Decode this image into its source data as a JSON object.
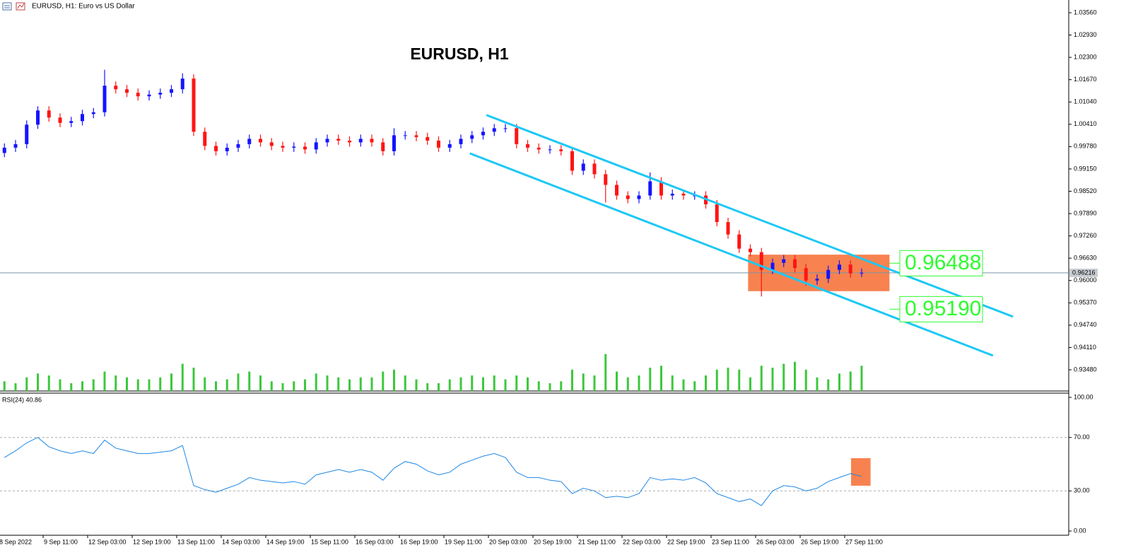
{
  "chart_data": [
    {
      "type": "candlestick",
      "title": "EURUSD, H1",
      "symbol_label": "EURUSD, H1:  Euro vs US Dollar",
      "categories": [
        null,
        "8 Sep 2022",
        null,
        null,
        null,
        "9 Sep 11:00",
        null,
        null,
        null,
        "12 Sep 03:00",
        null,
        null,
        null,
        "12 Sep 19:00",
        null,
        null,
        null,
        "13 Sep 11:00",
        null,
        null,
        null,
        "14 Sep 03:00",
        null,
        null,
        null,
        "14 Sep 19:00",
        null,
        null,
        null,
        "15 Sep 11:00",
        null,
        null,
        null,
        "16 Sep 03:00",
        null,
        null,
        null,
        "16 Sep 19:00",
        null,
        null,
        null,
        "19 Sep 11:00",
        null,
        null,
        null,
        "20 Sep 03:00",
        null,
        null,
        null,
        "20 Sep 19:00",
        null,
        null,
        null,
        "21 Sep 11:00",
        null,
        null,
        null,
        "22 Sep 03:00",
        null,
        null,
        null,
        "22 Sep 19:00",
        null,
        null,
        null,
        "23 Sep 11:00",
        null,
        null,
        null,
        "26 Sep 03:00",
        null,
        null,
        null,
        "26 Sep 19:00",
        null,
        null,
        null,
        "27 Sep 11:00"
      ],
      "open": [
        0.996,
        0.9975,
        0.9985,
        1.004,
        1.008,
        1.006,
        1.0045,
        1.005,
        1.007,
        1.0075,
        1.015,
        1.014,
        1.013,
        1.012,
        1.0125,
        1.013,
        1.014,
        1.017,
        1.002,
        0.998,
        0.9965,
        0.9975,
        0.9985,
        1.0,
        0.999,
        0.998,
        0.9975,
        0.9978,
        0.997,
        0.999,
        1.0,
        0.9995,
        0.999,
        1.0,
        0.999,
        0.9965,
        1.001,
        1.001,
        1.0005,
        0.9995,
        0.9975,
        0.9985,
        1.0,
        1.001,
        1.002,
        1.003,
        1.003,
        0.9985,
        0.9975,
        0.997,
        0.997,
        0.9965,
        0.991,
        0.993,
        0.99,
        0.987,
        0.984,
        0.983,
        0.984,
        0.988,
        0.984,
        0.9845,
        0.984,
        0.984,
        0.9815,
        0.9765,
        0.973,
        0.969,
        0.968,
        0.963,
        0.965,
        0.966,
        0.9635,
        0.96,
        0.9605,
        0.963,
        0.9645,
        0.962
      ],
      "high": [
        0.9987,
        0.9997,
        1.0052,
        1.0092,
        1.0092,
        1.0072,
        1.0062,
        1.0082,
        1.0087,
        1.0195,
        1.0162,
        1.0152,
        1.0142,
        1.0137,
        1.0142,
        1.0152,
        1.0185,
        1.0182,
        1.0032,
        0.9992,
        0.9987,
        0.9997,
        1.0012,
        1.0012,
        1.0002,
        0.9992,
        0.999,
        0.999,
        1.0002,
        1.0012,
        1.0012,
        1.0007,
        1.0012,
        1.0012,
        1.0002,
        1.003,
        1.0022,
        1.0022,
        1.0017,
        1.0007,
        0.9997,
        1.0012,
        1.0022,
        1.0032,
        1.0042,
        1.0042,
        1.0042,
        0.9997,
        0.9987,
        0.9982,
        0.9982,
        0.9977,
        0.9942,
        0.9942,
        0.9912,
        0.9882,
        0.9852,
        0.9852,
        0.9905,
        0.9892,
        0.9857,
        0.9857,
        0.9852,
        0.9852,
        0.9827,
        0.9777,
        0.9742,
        0.9702,
        0.9692,
        0.9662,
        0.9672,
        0.9672,
        0.9647,
        0.9617,
        0.9642,
        0.9657,
        0.9657,
        0.9634
      ],
      "low": [
        0.9948,
        0.9963,
        0.9973,
        1.0028,
        1.0048,
        1.0033,
        1.0033,
        1.0038,
        1.0058,
        1.0063,
        1.0128,
        1.0118,
        1.0108,
        1.0108,
        1.0113,
        1.0118,
        1.0128,
        1.0008,
        0.9968,
        0.9953,
        0.9953,
        0.9963,
        0.9973,
        0.9978,
        0.9968,
        0.9963,
        0.9963,
        0.9958,
        0.9958,
        0.9978,
        0.9983,
        0.9978,
        0.9978,
        0.9978,
        0.9953,
        0.9953,
        0.9998,
        0.9993,
        0.9983,
        0.9963,
        0.9963,
        0.9973,
        0.9988,
        0.9998,
        1.0008,
        1.0018,
        0.9973,
        0.9963,
        0.9958,
        0.9958,
        0.9953,
        0.9898,
        0.9898,
        0.9888,
        0.982,
        0.9828,
        0.9818,
        0.9818,
        0.9828,
        0.9828,
        0.9828,
        0.9828,
        0.9828,
        0.9803,
        0.9753,
        0.9718,
        0.9678,
        0.9668,
        0.9555,
        0.9618,
        0.9638,
        0.9623,
        0.9585,
        0.9588,
        0.9593,
        0.9618,
        0.9608,
        0.961
      ],
      "close": [
        0.9975,
        0.9985,
        1.004,
        1.008,
        1.006,
        1.0045,
        1.005,
        1.007,
        1.0075,
        1.015,
        1.014,
        1.013,
        1.012,
        1.0125,
        1.013,
        1.014,
        1.017,
        1.002,
        0.998,
        0.9965,
        0.9975,
        0.9985,
        1.0,
        0.999,
        0.998,
        0.9975,
        0.9978,
        0.997,
        0.999,
        1.0,
        0.9995,
        0.999,
        1.0,
        0.999,
        0.9965,
        1.001,
        1.001,
        1.0005,
        0.9995,
        0.9975,
        0.9985,
        1.0,
        1.001,
        1.002,
        1.003,
        1.003,
        0.9985,
        0.9975,
        0.997,
        0.997,
        0.9965,
        0.991,
        0.993,
        0.99,
        0.987,
        0.984,
        0.983,
        0.984,
        0.988,
        0.984,
        0.9845,
        0.984,
        0.984,
        0.9815,
        0.9765,
        0.973,
        0.969,
        0.968,
        0.963,
        0.965,
        0.966,
        0.9635,
        0.96,
        0.9605,
        0.963,
        0.9645,
        0.962,
        0.9622
      ],
      "up_color": "#1414ff",
      "down_color": "#ff1414",
      "ylim": [
        0.92881,
        1.03919
      ],
      "yticks": [
        {
          "value": 1.0356,
          "label": "1.03560"
        },
        {
          "value": 1.0293,
          "label": "1.02930"
        },
        {
          "value": 1.023,
          "label": "1.02300"
        },
        {
          "value": 1.0167,
          "label": "1.01670"
        },
        {
          "value": 1.0104,
          "label": "1.01040"
        },
        {
          "value": 1.0041,
          "label": "1.00410"
        },
        {
          "value": 0.9978,
          "label": "0.99780"
        },
        {
          "value": 0.9915,
          "label": "0.99150"
        },
        {
          "value": 0.9852,
          "label": "0.98520"
        },
        {
          "value": 0.9789,
          "label": "0.97890"
        },
        {
          "value": 0.9726,
          "label": "0.97260"
        },
        {
          "value": 0.9663,
          "label": "0.96630"
        },
        {
          "value": 0.96,
          "label": "0.96000"
        },
        {
          "value": 0.9537,
          "label": "0.95370"
        },
        {
          "value": 0.9474,
          "label": "0.94740"
        },
        {
          "value": 0.9411,
          "label": "0.94110"
        },
        {
          "value": 0.9348,
          "label": "0.93480"
        }
      ],
      "last_price": 0.96216,
      "last_price_color": "#7a94a8",
      "volume": {
        "values": [
          25,
          20,
          35,
          45,
          40,
          30,
          20,
          25,
          30,
          50,
          40,
          35,
          30,
          30,
          35,
          45,
          70,
          60,
          35,
          25,
          30,
          45,
          50,
          40,
          25,
          20,
          25,
          30,
          45,
          40,
          35,
          30,
          35,
          35,
          50,
          55,
          40,
          30,
          20,
          20,
          30,
          35,
          40,
          35,
          40,
          30,
          40,
          35,
          25,
          20,
          25,
          55,
          45,
          40,
          95,
          50,
          35,
          40,
          60,
          65,
          40,
          30,
          25,
          40,
          55,
          60,
          55,
          35,
          65,
          60,
          70,
          75,
          55,
          35,
          30,
          45,
          50,
          65
        ],
        "ylim": [
          0,
          100
        ],
        "color": "#3cc83c"
      },
      "channels": [
        {
          "x": [
            43.3,
            90.6
          ],
          "y": [
            1.0067,
            0.9498
          ]
        },
        {
          "x": [
            41.8,
            88.8
          ],
          "y": [
            0.9959,
            0.9388
          ]
        }
      ],
      "channel_color": "#1ec8f5",
      "highlight": {
        "x": [
          66.8,
          79.5
        ],
        "y": [
          0.9673,
          0.957
        ],
        "color": "#f7824f"
      },
      "levels": [
        0.96488,
        {
          "value": 0.9519,
          "label": "0.95190"
        }
      ],
      "level_color": "#2dfc2d"
    },
    {
      "type": "line",
      "label": "RSI(24) 40.86",
      "values": [
        55,
        60,
        66,
        70,
        63,
        60,
        58,
        60,
        58,
        68,
        62,
        60,
        58,
        58,
        59,
        60,
        64,
        34,
        31,
        29,
        32,
        35,
        40,
        38,
        37,
        36,
        37,
        35,
        42,
        44,
        46,
        44,
        46,
        44,
        38,
        47,
        52,
        50,
        45,
        42,
        44,
        50,
        53,
        56,
        58,
        55,
        44,
        40,
        40,
        38,
        37,
        28,
        32,
        30,
        25,
        26,
        25,
        28,
        40,
        38,
        39,
        38,
        40,
        36,
        28,
        25,
        22,
        24,
        19,
        30,
        34,
        33,
        30,
        32,
        37,
        40,
        43,
        40.86
      ],
      "color": "#1e88e5",
      "ylim": [
        0,
        100
      ],
      "yticks": [
        {
          "value": 100,
          "label": "100.00"
        },
        {
          "value": 70,
          "label": "70.00"
        },
        {
          "value": 30,
          "label": "30.00"
        },
        {
          "value": 0,
          "label": "0.00"
        }
      ],
      "highlight": {
        "x": [
          76.05,
          77.8
        ],
        "y": [
          54.5,
          33.9
        ],
        "color": "#f7824f"
      }
    }
  ]
}
